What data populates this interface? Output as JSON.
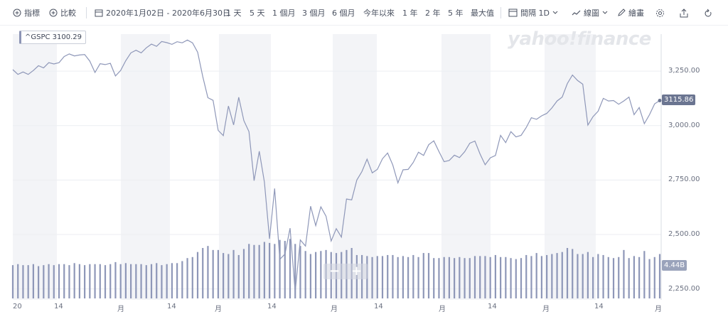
{
  "toolbar": {
    "indicators_label": "指標",
    "compare_label": "比較",
    "date_range_label": "2020年1月02日 - 2020年6月30日",
    "ranges": [
      "1 天",
      "5 天",
      "1 個月",
      "3 個月",
      "6 個月",
      "今年以來",
      "1 年",
      "2 年",
      "5 年",
      "最大值"
    ],
    "interval_label": "間隔 1D",
    "chart_type_label": "線圖",
    "draw_label": "繪畫"
  },
  "legend": {
    "symbol_value": "^GSPC 3100.29"
  },
  "watermark": "yahoo!finance",
  "price_tag": "3115.86",
  "volume_tag": "4.44B",
  "zoom": {
    "minus": "−",
    "plus": "+"
  },
  "y_ticks": [
    "3,250.00",
    "3,000.00",
    "2,750.00",
    "2,500.00",
    "2,250.00"
  ],
  "x_ticks": [
    "20",
    "14",
    "月",
    "14",
    "月",
    "14",
    "月",
    "14",
    "月",
    "14",
    "月",
    "14",
    "月"
  ],
  "colors": {
    "line": "#8e97b8",
    "volume": "#8e97b8",
    "band": "#f3f4f7",
    "grid": "#eceef2"
  },
  "chart_data": {
    "type": "line",
    "series_name": "^GSPC",
    "ylim": [
      2200,
      3420
    ],
    "close": [
      3257,
      3235,
      3246,
      3235,
      3253,
      3275,
      3265,
      3289,
      3283,
      3289,
      3317,
      3329,
      3320,
      3324,
      3326,
      3296,
      3244,
      3284,
      3280,
      3286,
      3228,
      3253,
      3298,
      3334,
      3346,
      3334,
      3357,
      3374,
      3364,
      3386,
      3381,
      3373,
      3385,
      3380,
      3393,
      3380,
      3337,
      3225,
      3128,
      3116,
      2978,
      2954,
      3090,
      3003,
      3130,
      3023,
      2972,
      2747,
      2882,
      2741,
      2480,
      2711,
      2386,
      2410,
      2529,
      2237,
      2475,
      2447,
      2630,
      2541,
      2627,
      2584,
      2470,
      2527,
      2488,
      2663,
      2659,
      2750,
      2789,
      2846,
      2783,
      2799,
      2848,
      2874,
      2820,
      2737,
      2797,
      2799,
      2831,
      2878,
      2863,
      2912,
      2930,
      2881,
      2834,
      2840,
      2864,
      2853,
      2880,
      2919,
      2929,
      2870,
      2820,
      2852,
      2863,
      2955,
      2922,
      2972,
      2948,
      2955,
      2991,
      3036,
      3029,
      3045,
      3056,
      3081,
      3113,
      3131,
      3193,
      3232,
      3207,
      3190,
      3002,
      3041,
      3066,
      3125,
      3113,
      3115,
      3098,
      3113,
      3131,
      3050,
      3083,
      3009,
      3050,
      3100,
      3115
    ],
    "volume_B": [
      3.3,
      3.4,
      3.3,
      3.3,
      3.4,
      3.2,
      3.3,
      3.4,
      3.3,
      3.4,
      3.4,
      3.3,
      3.5,
      3.4,
      3.3,
      3.4,
      3.4,
      3.4,
      3.3,
      3.4,
      3.6,
      3.4,
      3.5,
      3.4,
      3.4,
      3.4,
      3.3,
      3.4,
      3.5,
      3.3,
      3.4,
      3.5,
      3.5,
      3.7,
      4.0,
      4.1,
      4.6,
      5.0,
      5.2,
      4.8,
      4.8,
      4.5,
      4.4,
      4.8,
      4.3,
      4.9,
      5.4,
      5.3,
      5.3,
      5.6,
      5.5,
      5.4,
      5.8,
      5.7,
      5.9,
      5.4,
      5.2,
      4.7,
      4.4,
      4.6,
      4.7,
      4.8,
      4.6,
      4.5,
      4.6,
      4.8,
      5.0,
      4.3,
      4.3,
      4.2,
      4.1,
      4.2,
      4.2,
      4.3,
      4.3,
      4.1,
      4.2,
      4.1,
      4.3,
      4.1,
      4.5,
      4.5,
      4.0,
      4.0,
      4.1,
      4.1,
      4.0,
      4.1,
      4.0,
      4.0,
      4.2,
      4.2,
      4.2,
      4.1,
      4.3,
      4.1,
      4.1,
      4.0,
      3.9,
      4.0,
      4.3,
      4.2,
      4.5,
      4.2,
      4.3,
      4.4,
      4.5,
      4.6,
      5.0,
      4.9,
      4.4,
      4.4,
      4.6,
      4.1,
      4.4,
      4.3,
      4.1,
      4.0,
      4.1,
      4.8,
      4.0,
      4.2,
      4.1,
      4.7,
      3.9,
      4.1,
      4.4
    ],
    "bands": [
      [
        18,
        80
      ],
      [
        170,
        239
      ],
      [
        308,
        381
      ],
      [
        468,
        530
      ],
      [
        621,
        690
      ],
      [
        766,
        838
      ]
    ]
  }
}
